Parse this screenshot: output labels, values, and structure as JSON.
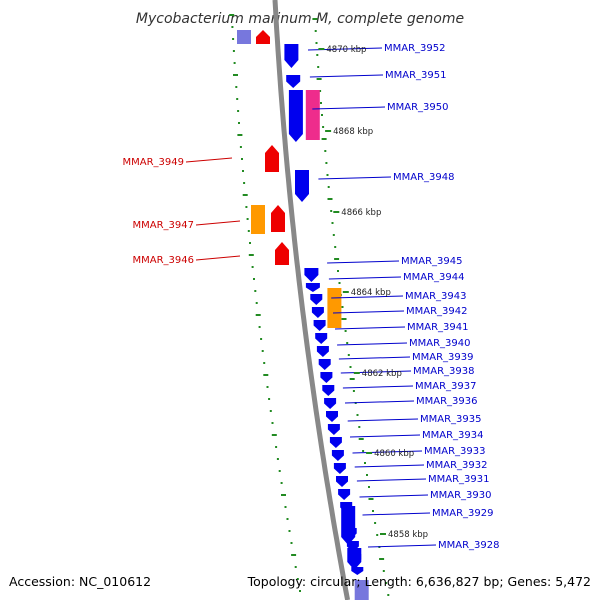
{
  "title": "Mycobacterium marinum M, complete genome",
  "accession": "Accession: NC_010612",
  "summary": "Topology: circular; Length: 6,636,827 bp; Genes: 5,472",
  "colors": {
    "forward_gene": "#0000ee",
    "reverse_gene": "#ee0000",
    "rna_gene": "#ee2c8c",
    "other_gene": "#ff9900",
    "backbone": "#888888",
    "ticks": "#228b22",
    "forward_label": "#0000cc",
    "reverse_label": "#cc0000"
  },
  "kbp_markers": [
    {
      "label": "4870 kbp",
      "pos_kbp": 4870
    },
    {
      "label": "4868 kbp",
      "pos_kbp": 4868
    },
    {
      "label": "4866 kbp",
      "pos_kbp": 4866
    },
    {
      "label": "4864 kbp",
      "pos_kbp": 4864
    },
    {
      "label": "4862 kbp",
      "pos_kbp": 4862
    },
    {
      "label": "4860 kbp",
      "pos_kbp": 4860
    },
    {
      "label": "4858 kbp",
      "pos_kbp": 4858
    }
  ],
  "forward_labels": [
    "MMAR_3952",
    "MMAR_3951",
    "MMAR_3950",
    "MMAR_3948",
    "MMAR_3945",
    "MMAR_3944",
    "MMAR_3943",
    "MMAR_3942",
    "MMAR_3941",
    "MMAR_3940",
    "MMAR_3939",
    "MMAR_3938",
    "MMAR_3937",
    "MMAR_3936",
    "MMAR_3935",
    "MMAR_3934",
    "MMAR_3933",
    "MMAR_3932",
    "MMAR_3931",
    "MMAR_3930",
    "MMAR_3929",
    "MMAR_3928"
  ],
  "reverse_labels": [
    "MMAR_3949",
    "MMAR_3947",
    "MMAR_3946"
  ]
}
